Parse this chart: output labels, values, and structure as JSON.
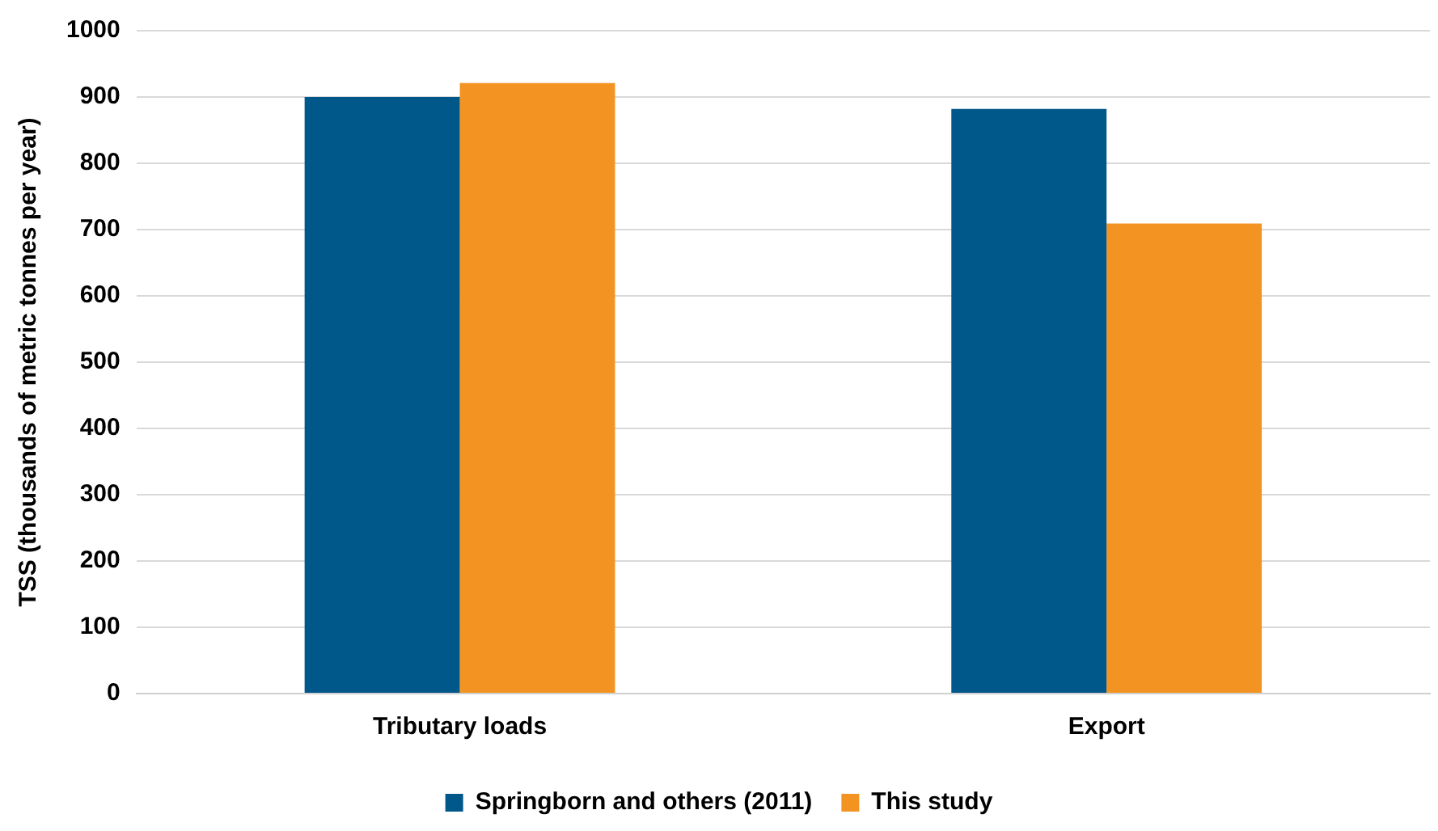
{
  "chart_data": {
    "type": "bar",
    "ylabel": "TSS (thousands of metric tonnes per year)",
    "categories": [
      "Tributary loads",
      "Export"
    ],
    "series": [
      {
        "name": "Springborn and others (2011)",
        "color": "#00578a",
        "values": [
          900,
          882
        ]
      },
      {
        "name": "This study",
        "color": "#f39422",
        "values": [
          921,
          709
        ]
      }
    ],
    "ylim": [
      0,
      1000
    ],
    "yticks": [
      0,
      100,
      200,
      300,
      400,
      500,
      600,
      700,
      800,
      900,
      1000
    ],
    "grid": "y",
    "legend": "bottom"
  }
}
